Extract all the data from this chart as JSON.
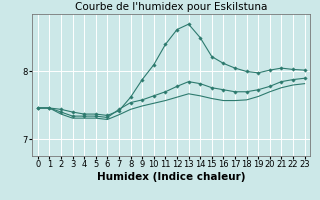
{
  "title": "Courbe de l'humidex pour Eskilstuna",
  "xlabel": "Humidex (Indice chaleur)",
  "bg_color": "#cce8e8",
  "grid_color": "#ffffff",
  "line_color": "#2d7a6e",
  "x_values": [
    0,
    1,
    2,
    3,
    4,
    5,
    6,
    7,
    8,
    9,
    10,
    11,
    12,
    13,
    14,
    15,
    16,
    17,
    18,
    19,
    20,
    21,
    22,
    23
  ],
  "line1": [
    7.46,
    7.46,
    7.44,
    7.4,
    7.37,
    7.37,
    7.35,
    7.42,
    7.62,
    7.88,
    8.1,
    8.4,
    8.62,
    8.7,
    8.5,
    8.22,
    8.12,
    8.05,
    8.0,
    7.98,
    8.02,
    8.05,
    8.03,
    8.02
  ],
  "line2": [
    7.46,
    7.46,
    7.4,
    7.34,
    7.34,
    7.34,
    7.32,
    7.44,
    7.54,
    7.58,
    7.64,
    7.7,
    7.78,
    7.85,
    7.82,
    7.76,
    7.73,
    7.7,
    7.7,
    7.73,
    7.78,
    7.85,
    7.88,
    7.9
  ],
  "line3": [
    7.46,
    7.46,
    7.37,
    7.31,
    7.31,
    7.31,
    7.29,
    7.36,
    7.44,
    7.49,
    7.53,
    7.57,
    7.62,
    7.67,
    7.64,
    7.6,
    7.57,
    7.57,
    7.58,
    7.63,
    7.7,
    7.76,
    7.8,
    7.82
  ],
  "ylim": [
    6.75,
    8.85
  ],
  "yticks": [
    7,
    8
  ],
  "xlim": [
    -0.5,
    23.5
  ],
  "xticks": [
    0,
    1,
    2,
    3,
    4,
    5,
    6,
    7,
    8,
    9,
    10,
    11,
    12,
    13,
    14,
    15,
    16,
    17,
    18,
    19,
    20,
    21,
    22,
    23
  ],
  "xlabel_fontsize": 7.5,
  "tick_fontsize": 6.0,
  "title_fontsize": 7.5
}
